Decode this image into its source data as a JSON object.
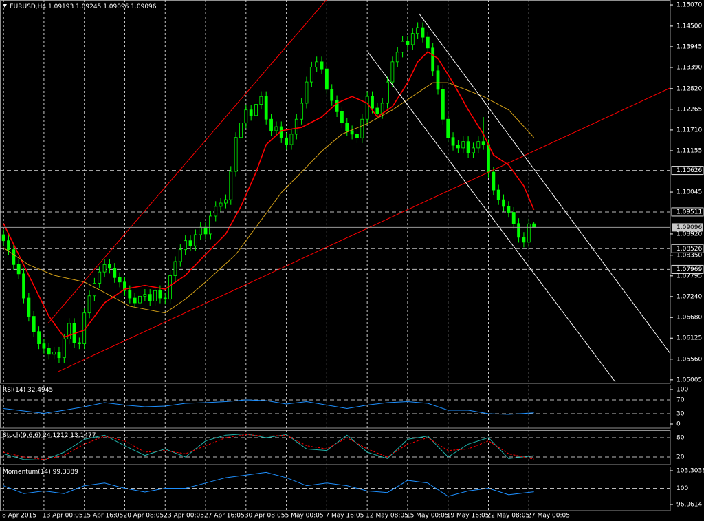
{
  "chart_data": [
    {
      "type": "candlestick",
      "title": "EURUSD,H4",
      "color": "#00ff00",
      "open": [
        1.089,
        1.0874,
        1.085,
        1.081,
        1.0785,
        1.072,
        1.0671,
        1.063,
        1.0597,
        1.0585,
        1.0569,
        1.0575,
        1.056,
        1.061,
        1.0652,
        1.06,
        1.0597,
        1.068,
        1.0726,
        1.076,
        1.079,
        1.081,
        1.08,
        1.0775,
        1.0763,
        1.074,
        1.072,
        1.0707,
        1.0725,
        1.073,
        1.0712,
        1.074,
        1.072,
        1.0717,
        1.078,
        1.0818,
        1.085,
        1.0874,
        1.086,
        1.089,
        1.091,
        1.0892,
        1.094,
        1.0966,
        1.0975,
        1.0984,
        1.106,
        1.1151,
        1.119,
        1.1225,
        1.121,
        1.124,
        1.1261,
        1.12,
        1.1169,
        1.118,
        1.115,
        1.1132,
        1.116,
        1.12,
        1.1243,
        1.13,
        1.134,
        1.1354,
        1.1335,
        1.128,
        1.125,
        1.122,
        1.119,
        1.1169,
        1.116,
        1.115,
        1.12,
        1.1261,
        1.123,
        1.1215,
        1.1243,
        1.13,
        1.1354,
        1.138,
        1.1409,
        1.14,
        1.143,
        1.1446,
        1.142,
        1.1391,
        1.133,
        1.128,
        1.12,
        1.1151,
        1.113,
        1.1123,
        1.114,
        1.111,
        1.1123,
        1.114,
        1.1132,
        1.1058,
        1.101,
        1.0984,
        1.0966,
        1.095,
        1.092,
        1.0883,
        1.087,
        1.09193
      ],
      "high": [
        1.0904,
        1.0888,
        1.0864,
        1.0824,
        1.0799,
        1.0734,
        1.0685,
        1.0644,
        1.0611,
        1.0599,
        1.0589,
        1.0589,
        1.0624,
        1.0666,
        1.0666,
        1.0614,
        1.0694,
        1.074,
        1.0774,
        1.0804,
        1.0824,
        1.0824,
        1.0814,
        1.0789,
        1.0777,
        1.0754,
        1.0734,
        1.0739,
        1.0744,
        1.0744,
        1.0754,
        1.0754,
        1.0734,
        1.0794,
        1.0832,
        1.0864,
        1.0888,
        1.0888,
        1.0904,
        1.0924,
        1.0924,
        1.0954,
        1.098,
        1.0989,
        1.0998,
        1.1074,
        1.1165,
        1.1204,
        1.1239,
        1.1239,
        1.1254,
        1.1275,
        1.1275,
        1.1214,
        1.1194,
        1.1194,
        1.1164,
        1.1174,
        1.1214,
        1.1257,
        1.1314,
        1.1354,
        1.1368,
        1.1368,
        1.1349,
        1.1294,
        1.1264,
        1.1234,
        1.1204,
        1.1183,
        1.1174,
        1.1214,
        1.1275,
        1.1275,
        1.1244,
        1.1257,
        1.1314,
        1.1368,
        1.1394,
        1.1423,
        1.1423,
        1.1444,
        1.146,
        1.146,
        1.1434,
        1.1405,
        1.1344,
        1.1294,
        1.1214,
        1.1165,
        1.1144,
        1.1154,
        1.1154,
        1.1137,
        1.1154,
        1.1206,
        1.1146,
        1.1072,
        1.1024,
        1.0998,
        1.098,
        1.0964,
        1.0934,
        1.0897,
        1.0933,
        1.09245
      ],
      "low": [
        1.086,
        1.0836,
        1.0796,
        1.0771,
        1.0706,
        1.0657,
        1.0616,
        1.0583,
        1.0571,
        1.0555,
        1.0555,
        1.0546,
        1.0546,
        1.0596,
        1.0586,
        1.0583,
        1.0583,
        1.0666,
        1.0712,
        1.0746,
        1.0776,
        1.0786,
        1.0761,
        1.0749,
        1.0726,
        1.0706,
        1.0693,
        1.0693,
        1.0711,
        1.0698,
        1.0698,
        1.0706,
        1.0703,
        1.0703,
        1.0766,
        1.0804,
        1.0836,
        1.0846,
        1.0846,
        1.0876,
        1.0878,
        1.0878,
        1.0926,
        1.0952,
        1.0961,
        1.097,
        1.1046,
        1.1137,
        1.1176,
        1.1196,
        1.1196,
        1.1226,
        1.1186,
        1.1155,
        1.1155,
        1.1136,
        1.1118,
        1.1118,
        1.1146,
        1.1186,
        1.1229,
        1.1286,
        1.1326,
        1.1321,
        1.1266,
        1.1236,
        1.1206,
        1.1176,
        1.1155,
        1.1146,
        1.1136,
        1.1136,
        1.1186,
        1.1216,
        1.1201,
        1.1201,
        1.1229,
        1.1286,
        1.134,
        1.1366,
        1.1386,
        1.1386,
        1.1416,
        1.1406,
        1.1377,
        1.1316,
        1.1266,
        1.1186,
        1.1137,
        1.1116,
        1.1109,
        1.1109,
        1.1096,
        1.1096,
        1.1109,
        1.1118,
        1.1044,
        1.0996,
        1.097,
        1.0952,
        1.0936,
        1.0906,
        1.0869,
        1.0856,
        1.0856,
        1.09096
      ],
      "close": [
        1.0874,
        1.085,
        1.081,
        1.0785,
        1.072,
        1.0671,
        1.063,
        1.0597,
        1.0585,
        1.0569,
        1.0575,
        1.056,
        1.061,
        1.0652,
        1.06,
        1.0597,
        1.068,
        1.0726,
        1.076,
        1.079,
        1.081,
        1.08,
        1.0775,
        1.0763,
        1.074,
        1.072,
        1.0707,
        1.0725,
        1.073,
        1.0712,
        1.074,
        1.072,
        1.0717,
        1.078,
        1.0818,
        1.085,
        1.0874,
        1.086,
        1.089,
        1.091,
        1.0892,
        1.094,
        1.0966,
        1.0975,
        1.0984,
        1.106,
        1.1151,
        1.119,
        1.1225,
        1.121,
        1.124,
        1.1261,
        1.12,
        1.1169,
        1.118,
        1.115,
        1.1132,
        1.116,
        1.12,
        1.1243,
        1.13,
        1.134,
        1.1354,
        1.1335,
        1.128,
        1.125,
        1.122,
        1.119,
        1.1169,
        1.116,
        1.115,
        1.12,
        1.1261,
        1.123,
        1.1215,
        1.1243,
        1.13,
        1.1354,
        1.138,
        1.1409,
        1.14,
        1.143,
        1.1446,
        1.142,
        1.1391,
        1.133,
        1.128,
        1.12,
        1.1151,
        1.113,
        1.1123,
        1.114,
        1.111,
        1.1123,
        1.114,
        1.1132,
        1.1058,
        1.101,
        1.0984,
        1.0966,
        1.095,
        1.092,
        1.0883,
        1.087,
        1.0919,
        1.09096
      ],
      "xlim": [
        -0.7,
        132
      ],
      "xticks": [
        {
          "value": 0,
          "label": "8 Apr 2015"
        },
        {
          "value": 8,
          "label": "13 Apr 00:05"
        },
        {
          "value": 16,
          "label": "15 Apr 16:05"
        },
        {
          "value": 24,
          "label": "20 Apr 08:05"
        },
        {
          "value": 32,
          "label": "23 Apr 00:05"
        },
        {
          "value": 40,
          "label": "27 Apr 16:05"
        },
        {
          "value": 48,
          "label": "30 Apr 08:05"
        },
        {
          "value": 56,
          "label": "5 May 00:05"
        },
        {
          "value": 64,
          "label": "7 May 16:05"
        },
        {
          "value": 72,
          "label": "12 May 08:05"
        },
        {
          "value": 80,
          "label": "15 May 00:05"
        },
        {
          "value": 88,
          "label": "19 May 16:05"
        },
        {
          "value": 96,
          "label": "22 May 08:05"
        },
        {
          "value": 104,
          "label": "27 May 00:05"
        }
      ],
      "ylim": [
        1.0491,
        1.152
      ],
      "yticks": [
        {
          "value": 1.1507,
          "label": "1.15070"
        },
        {
          "value": 1.145,
          "label": "1.14500"
        },
        1.13945,
        {
          "value": 1.1339,
          "label": "1.13390"
        },
        {
          "value": 1.1282,
          "label": "1.12820"
        },
        1.12265,
        {
          "value": 1.1171,
          "label": "1.11710"
        },
        1.11155,
        1.10045,
        {
          "value": 1.0892,
          "label": "1.08920"
        },
        {
          "value": 1.0835,
          "label": "1.08350"
        },
        1.07795,
        {
          "value": 1.0724,
          "label": "1.07240"
        },
        {
          "value": 1.0668,
          "label": "1.06680"
        },
        1.06125,
        {
          "value": 1.0556,
          "label": "1.05560"
        },
        1.05005
      ],
      "levels": [
        1.10626,
        1.09511,
        1.08526,
        1.07969
      ],
      "ma": [
        {
          "color": "#ff0000",
          "x": [
            0,
            5,
            9,
            12,
            16,
            20,
            24,
            28,
            32,
            36,
            40,
            44,
            47,
            50,
            52,
            55,
            59,
            63,
            66,
            69,
            72,
            74,
            77,
            80,
            82,
            84,
            86,
            89,
            92,
            95,
            97,
            100,
            103,
            105
          ],
          "values": [
            1.092,
            1.0781,
            1.0671,
            1.0615,
            1.0634,
            1.0707,
            1.0744,
            1.0754,
            1.0744,
            1.0781,
            1.0837,
            1.0892,
            1.0966,
            1.1058,
            1.1132,
            1.1169,
            1.1178,
            1.1206,
            1.1243,
            1.1261,
            1.1243,
            1.1206,
            1.1234,
            1.1298,
            1.1354,
            1.1381,
            1.1363,
            1.1298,
            1.1225,
            1.116,
            1.1104,
            1.1077,
            1.1021,
            1.0957
          ]
        },
        {
          "color": "#d4a017",
          "x": [
            0,
            5,
            10,
            16,
            20,
            25,
            32,
            36,
            40,
            46,
            51,
            55,
            59,
            63,
            67,
            72,
            77,
            82,
            85,
            88,
            95,
            100,
            105
          ],
          "values": [
            1.0855,
            1.0809,
            1.0781,
            1.0763,
            1.0735,
            1.0698,
            1.068,
            1.0717,
            1.0763,
            1.0837,
            1.0929,
            1.1003,
            1.1058,
            1.1114,
            1.116,
            1.1188,
            1.1225,
            1.1271,
            1.1298,
            1.1298,
            1.1261,
            1.1225,
            1.1151
          ]
        }
      ],
      "trendlines": [
        {
          "color": "#ff0000",
          "x": [
            8.8,
            63.9
          ],
          "values": [
            1.0652,
            1.152
          ]
        },
        {
          "color": "#ff0000",
          "x": [
            10.9,
            132
          ],
          "values": [
            1.0523,
            1.1284
          ]
        },
        {
          "color": "#ffffff",
          "x": [
            82.3,
            132
          ],
          "values": [
            1.1483,
            1.0571
          ]
        },
        {
          "color": "#ffffff",
          "x": [
            72.1,
            121.1
          ],
          "values": [
            1.1381,
            1.0495
          ]
        }
      ]
    },
    {
      "type": "line",
      "title": "RSI(14)",
      "ylim": [
        -12,
        114
      ],
      "yticks": [
        100,
        0
      ],
      "levels": [
        70,
        30
      ],
      "x": [
        0,
        4,
        8,
        12,
        16,
        20,
        24,
        28,
        32,
        36,
        40,
        44,
        48,
        52,
        56,
        60,
        64,
        68,
        72,
        76,
        80,
        84,
        88,
        92,
        96,
        100,
        105
      ],
      "series": [
        {
          "color": "#1e90ff",
          "values": [
            45,
            38,
            31,
            40,
            50,
            62,
            55,
            50,
            52,
            60,
            62,
            65,
            70,
            68,
            58,
            65,
            55,
            45,
            55,
            62,
            65,
            60,
            40,
            40,
            30,
            28,
            32.4945
          ]
        }
      ]
    },
    {
      "type": "line",
      "title": "Stoch(9,6,6)",
      "ylim": [
        -3.6,
        103.6
      ],
      "levels": [
        80,
        20
      ],
      "x": [
        0,
        4,
        8,
        12,
        16,
        20,
        24,
        28,
        32,
        36,
        40,
        44,
        48,
        52,
        56,
        60,
        64,
        68,
        72,
        76,
        80,
        84,
        88,
        92,
        96,
        100,
        105
      ],
      "series": [
        {
          "color": "#20b2aa",
          "values": [
            30,
            12,
            10,
            35,
            75,
            88,
            55,
            25,
            45,
            20,
            70,
            88,
            92,
            80,
            90,
            45,
            40,
            88,
            35,
            15,
            75,
            85,
            20,
            60,
            80,
            15,
            24.1212
          ]
        },
        {
          "color": "#ff0000",
          "style": "dashed",
          "values": [
            35,
            20,
            12,
            25,
            60,
            85,
            70,
            35,
            40,
            30,
            55,
            80,
            90,
            85,
            88,
            55,
            45,
            80,
            45,
            20,
            60,
            80,
            40,
            45,
            70,
            30,
            13.1477
          ]
        }
      ]
    },
    {
      "type": "line",
      "title": "Momentum(14)",
      "ylim": [
        95.8,
        104.08
      ],
      "yticks": [
        103.3038,
        96.9614
      ],
      "levels": [
        100
      ],
      "x": [
        0,
        4,
        8,
        12,
        16,
        20,
        24,
        28,
        32,
        36,
        40,
        44,
        48,
        52,
        56,
        60,
        64,
        68,
        72,
        76,
        80,
        84,
        88,
        92,
        96,
        100,
        105
      ],
      "series": [
        {
          "color": "#1e90ff",
          "values": [
            100.5,
            99,
            99.5,
            99,
            100.5,
            101,
            100,
            99.3,
            100,
            100,
            101,
            102,
            102.5,
            103,
            102,
            100.5,
            101,
            100.5,
            99.5,
            99.2,
            101.5,
            101,
            98.5,
            99.5,
            100,
            98.8,
            99.3389
          ]
        }
      ]
    }
  ]
}
